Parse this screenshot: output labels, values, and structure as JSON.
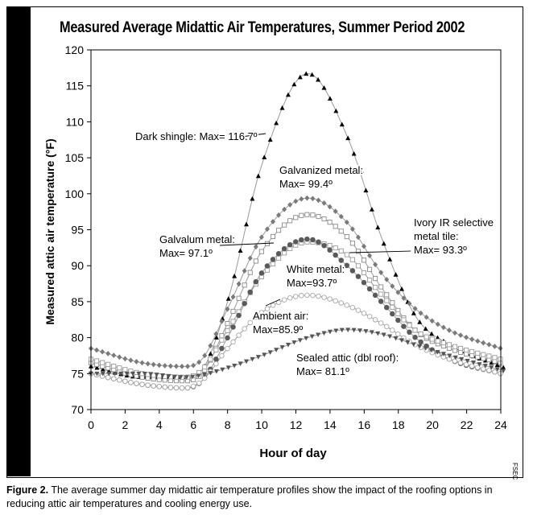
{
  "chart_data": {
    "type": "line",
    "title": "Measured Average Midattic Air Temperatures, Summer Period 2002",
    "xlabel": "Hour of day",
    "ylabel": "Measured attic air temperature (°F)",
    "xlim": [
      0,
      24
    ],
    "ylim": [
      70,
      120
    ],
    "xticks": [
      "0",
      "2",
      "4",
      "6",
      "8",
      "10",
      "12",
      "14",
      "16",
      "18",
      "20",
      "22",
      "24"
    ],
    "yticks": [
      "70",
      "75",
      "80",
      "85",
      "90",
      "95",
      "100",
      "105",
      "110",
      "115",
      "120"
    ],
    "grid": false,
    "series": [
      {
        "name": "Dark shingle",
        "marker": "triangle",
        "color": "#000000",
        "x": [
          0,
          3,
          5.5,
          6.5,
          8,
          10,
          12.7,
          15,
          17,
          19,
          21,
          24
        ],
        "y": [
          76,
          74.5,
          74.5,
          75.5,
          85,
          104,
          116.7,
          108,
          94,
          83,
          79,
          76
        ]
      },
      {
        "name": "Galvanized metal",
        "marker": "diamond",
        "color": "#7a7a7a",
        "x": [
          0,
          3,
          5.5,
          6.5,
          8,
          10,
          12.7,
          15,
          17,
          19,
          21,
          24
        ],
        "y": [
          78.5,
          76.5,
          76,
          77,
          84,
          94,
          99.4,
          96,
          89,
          84,
          81,
          78.5
        ]
      },
      {
        "name": "Galvalum metal",
        "marker": "square",
        "color": "#8a8a8a",
        "x": [
          0,
          3,
          5.5,
          6.5,
          8,
          10,
          12.7,
          15,
          17,
          19,
          21,
          24
        ],
        "y": [
          76.5,
          74.5,
          74,
          75,
          82,
          92,
          97.1,
          94,
          87,
          81,
          78.5,
          76.5
        ]
      },
      {
        "name": "Ivory IR selective metal tile",
        "marker": "square",
        "color": "#9a9a9a",
        "x": [
          0,
          3,
          5.5,
          6.5,
          8,
          10,
          12.7,
          15,
          17,
          19,
          21,
          24
        ],
        "y": [
          77,
          75,
          74.5,
          75.5,
          81,
          88.5,
          93.3,
          91.5,
          86,
          81,
          79,
          77
        ]
      },
      {
        "name": "White metal",
        "marker": "circle",
        "color": "#5a5a5a",
        "x": [
          0,
          3,
          5.5,
          6.5,
          8,
          10,
          12.7,
          15,
          17,
          19,
          21,
          24
        ],
        "y": [
          75,
          73.5,
          73,
          74,
          80,
          89,
          93.7,
          90,
          85,
          80,
          77,
          75
        ]
      },
      {
        "name": "Ambient air",
        "marker": "circle",
        "color": "#a8a8a8",
        "x": [
          0,
          3,
          5.5,
          6.5,
          8,
          10,
          12.7,
          15,
          17,
          19,
          21,
          24
        ],
        "y": [
          75,
          73.5,
          73,
          74,
          78.5,
          83.5,
          85.9,
          84.5,
          82,
          79,
          77,
          75
        ]
      },
      {
        "name": "Sealed attic (dbl roof)",
        "marker": "triangle-down",
        "color": "#555555",
        "x": [
          0,
          3,
          5.5,
          6.5,
          8,
          10,
          12.7,
          15,
          17,
          19,
          21,
          24
        ],
        "y": [
          75,
          75,
          74.5,
          74.8,
          75.8,
          77.5,
          80,
          81.1,
          80.5,
          79,
          77.5,
          75.5
        ]
      }
    ],
    "annotations": [
      {
        "lines": [
          "Dark shingle: Max= 116.7º"
        ]
      },
      {
        "lines": [
          "Galvanized metal:",
          "Max= 99.4º"
        ]
      },
      {
        "lines": [
          "Galvalum metal:",
          "Max= 97.1º"
        ]
      },
      {
        "lines": [
          "Ivory IR selective",
          "metal tile:",
          "Max= 93.3º"
        ]
      },
      {
        "lines": [
          "White metal:",
          "Max=93.7º"
        ]
      },
      {
        "lines": [
          "Ambient air:",
          "Max=85.9º"
        ]
      },
      {
        "lines": [
          "Sealed attic (dbl roof):",
          "Max= 81.1º"
        ]
      }
    ]
  },
  "caption": {
    "figure_label": "Figure 2.",
    "text": " The average summer day midattic air temperature profiles show the impact of the roofing options in reducing attic air temperatures and cooling energy use."
  },
  "credit": "FSEC"
}
